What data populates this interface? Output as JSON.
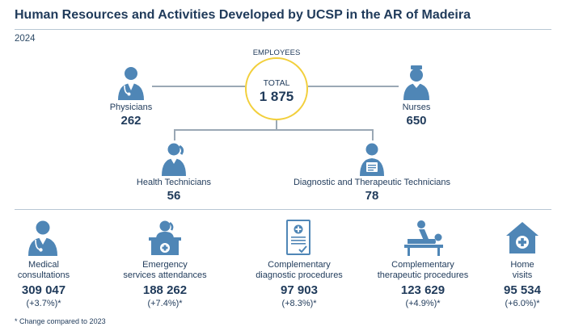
{
  "title": "Human Resources and Activities Developed by UCSP in the AR of Madeira",
  "year": "2024",
  "employees": {
    "heading": "EMPLOYEES",
    "total_label": "TOTAL",
    "total_value": "1 875",
    "physicians": {
      "label": "Physicians",
      "value": "262",
      "icon": "physician-icon"
    },
    "nurses": {
      "label": "Nurses",
      "value": "650",
      "icon": "nurse-icon"
    },
    "health_technicians": {
      "label": "Health Technicians",
      "value": "56",
      "icon": "health-technician-icon"
    },
    "diagnostic_technicians": {
      "label": "Diagnostic and Therapeutic Technicians",
      "value": "78",
      "icon": "diagnostic-technician-icon"
    }
  },
  "activities": [
    {
      "label_line1": "Medical",
      "label_line2": "consultations",
      "value": "309 047",
      "change": "(+3.7%)*",
      "icon": "medical-consultation-icon"
    },
    {
      "label_line1": "Emergency",
      "label_line2": "services attendances",
      "value": "188 262",
      "change": "(+7.4%)*",
      "icon": "emergency-desk-icon"
    },
    {
      "label_line1": "Complementary",
      "label_line2": "diagnostic procedures",
      "value": "97 903",
      "change": "(+8.3%)*",
      "icon": "clipboard-icon"
    },
    {
      "label_line1": "Complementary",
      "label_line2": "therapeutic procedures",
      "value": "123 629",
      "change": "(+4.9%)*",
      "icon": "physiotherapy-icon"
    },
    {
      "label_line1": "Home",
      "label_line2": "visits",
      "value": "95 534",
      "change": "(+6.0%)*",
      "icon": "home-visit-icon"
    }
  ],
  "footnote": "* Change compared to 2023",
  "colors": {
    "accent": "#f2cf3b",
    "icon_blue": "#4f86b6",
    "text": "#1f3a5a",
    "line": "#9aa8b5"
  }
}
